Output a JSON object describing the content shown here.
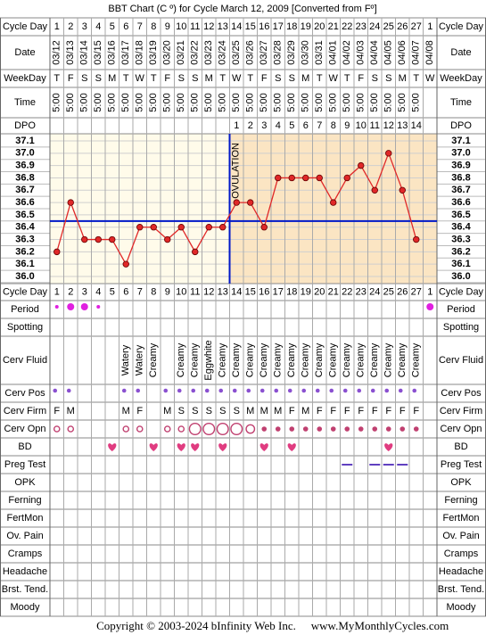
{
  "chart_data": {
    "type": "line",
    "title": "BBT Chart (C º) for Cycle March 12, 2009  [Converted from Fº]",
    "labels": {
      "cycle_day": "Cycle Day",
      "date": "Date",
      "weekday": "WeekDay",
      "time": "Time",
      "dpo": "DPO"
    },
    "categories": [
      1,
      2,
      3,
      4,
      5,
      6,
      7,
      8,
      9,
      10,
      11,
      12,
      13,
      14,
      15,
      16,
      17,
      18,
      19,
      20,
      21,
      22,
      23,
      24,
      25,
      26,
      27,
      1
    ],
    "dates": [
      "03/12",
      "03/13",
      "03/14",
      "03/15",
      "03/16",
      "03/17",
      "03/18",
      "03/19",
      "03/20",
      "03/21",
      "03/22",
      "03/23",
      "03/24",
      "03/25",
      "03/26",
      "03/27",
      "03/28",
      "03/29",
      "03/30",
      "03/31",
      "04/01",
      "04/02",
      "04/03",
      "04/04",
      "04/05",
      "04/06",
      "04/07",
      "04/08"
    ],
    "weekdays": [
      "T",
      "F",
      "S",
      "S",
      "M",
      "T",
      "W",
      "T",
      "F",
      "S",
      "S",
      "M",
      "T",
      "W",
      "T",
      "F",
      "S",
      "S",
      "M",
      "T",
      "W",
      "T",
      "F",
      "S",
      "S",
      "M",
      "T",
      "W"
    ],
    "times": [
      "5:00",
      "5:00",
      "5:00",
      "5:00",
      "5:00",
      "5:00",
      "5:00",
      "5:00",
      "5:00",
      "5:00",
      "5:00",
      "5:00",
      "5:00",
      "5:00",
      "5:00",
      "5:00",
      "5:00",
      "5:00",
      "5:00",
      "5:00",
      "5:00",
      "5:00",
      "5:00",
      "5:00",
      "5:00",
      "5:00",
      "5:00",
      null
    ],
    "dpo": [
      null,
      null,
      null,
      null,
      null,
      null,
      null,
      null,
      null,
      null,
      null,
      null,
      null,
      1,
      2,
      3,
      4,
      5,
      6,
      7,
      8,
      9,
      10,
      11,
      12,
      13,
      14,
      null
    ],
    "values": [
      36.2,
      36.6,
      36.3,
      36.3,
      36.3,
      36.1,
      36.4,
      36.4,
      36.3,
      36.4,
      36.2,
      36.4,
      36.4,
      36.6,
      36.6,
      36.4,
      36.8,
      36.8,
      36.8,
      36.8,
      36.6,
      36.8,
      36.9,
      36.7,
      37.0,
      36.7,
      36.3,
      null
    ],
    "color": "#e02828",
    "ylim": [
      36.0,
      37.1
    ],
    "yticks": [
      {
        "value": 36.0,
        "label": "36.0"
      },
      36.1,
      36.2,
      36.3,
      36.4,
      36.5,
      36.6,
      36.7,
      36.8,
      36.9,
      {
        "value": 37.0,
        "label": "37.0"
      },
      37.1
    ],
    "grid": true,
    "coverline": 36.45,
    "ovulation": {
      "label": "OVULATION",
      "day": 13
    },
    "observations": [
      {
        "label": "Period",
        "values": [
          1,
          2,
          2,
          1,
          null,
          null,
          null,
          null,
          null,
          null,
          null,
          null,
          null,
          null,
          null,
          null,
          null,
          null,
          null,
          null,
          null,
          null,
          null,
          null,
          null,
          null,
          null,
          2
        ]
      },
      {
        "label": "Spotting"
      },
      {
        "label": "Cerv Fluid",
        "values": [
          null,
          null,
          null,
          null,
          null,
          "Watery",
          "Watery",
          "Creamy",
          null,
          "Creamy",
          "Creamy",
          "Eggwhite",
          "Creamy",
          "Creamy",
          "Creamy",
          "Creamy",
          "Creamy",
          "Creamy",
          "Creamy",
          "Creamy",
          "Creamy",
          "Creamy",
          "Creamy",
          "Creamy",
          "Creamy",
          "Creamy",
          "Creamy",
          null
        ]
      },
      {
        "label": "Cerv Pos",
        "values": [
          true,
          true,
          null,
          null,
          null,
          true,
          true,
          null,
          true,
          true,
          true,
          true,
          true,
          true,
          true,
          true,
          true,
          true,
          true,
          true,
          true,
          true,
          true,
          true,
          true,
          true,
          true,
          null
        ]
      },
      {
        "label": "Cerv Firm",
        "values": [
          "F",
          "M",
          null,
          null,
          null,
          "M",
          "F",
          null,
          "M",
          "S",
          "S",
          "S",
          "S",
          "S",
          "M",
          "M",
          "M",
          "F",
          "M",
          "F",
          "F",
          "F",
          "F",
          "F",
          "F",
          "F",
          "F",
          null
        ]
      },
      {
        "label": "Cerv Opn",
        "values": [
          1,
          1,
          null,
          null,
          null,
          1,
          1,
          null,
          1,
          1,
          3,
          3,
          3,
          3,
          2,
          0,
          0,
          0,
          0,
          0,
          0,
          0,
          0,
          0,
          0,
          0,
          0,
          null
        ]
      },
      {
        "label": "BD",
        "values": [
          null,
          null,
          null,
          null,
          true,
          null,
          null,
          true,
          null,
          true,
          true,
          null,
          true,
          null,
          null,
          true,
          null,
          true,
          null,
          null,
          null,
          null,
          null,
          null,
          true,
          null,
          null,
          null
        ]
      },
      {
        "label": "Preg Test",
        "values": [
          null,
          null,
          null,
          null,
          null,
          null,
          null,
          null,
          null,
          null,
          null,
          null,
          null,
          null,
          null,
          null,
          null,
          null,
          null,
          null,
          null,
          true,
          null,
          true,
          true,
          true,
          null,
          null
        ]
      },
      {
        "label": "OPK"
      },
      {
        "label": "Ferning"
      },
      {
        "label": "FertMon"
      },
      {
        "label": "Ov. Pain"
      },
      {
        "label": "Cramps"
      },
      {
        "label": "Headache"
      },
      {
        "label": "Brst. Tend."
      },
      {
        "label": "Moody"
      }
    ],
    "footer": {
      "copyright": "Copyright © 2003-2024 bInfinity Web Inc.",
      "website": "www.MyMonthlyCycles.com"
    }
  }
}
